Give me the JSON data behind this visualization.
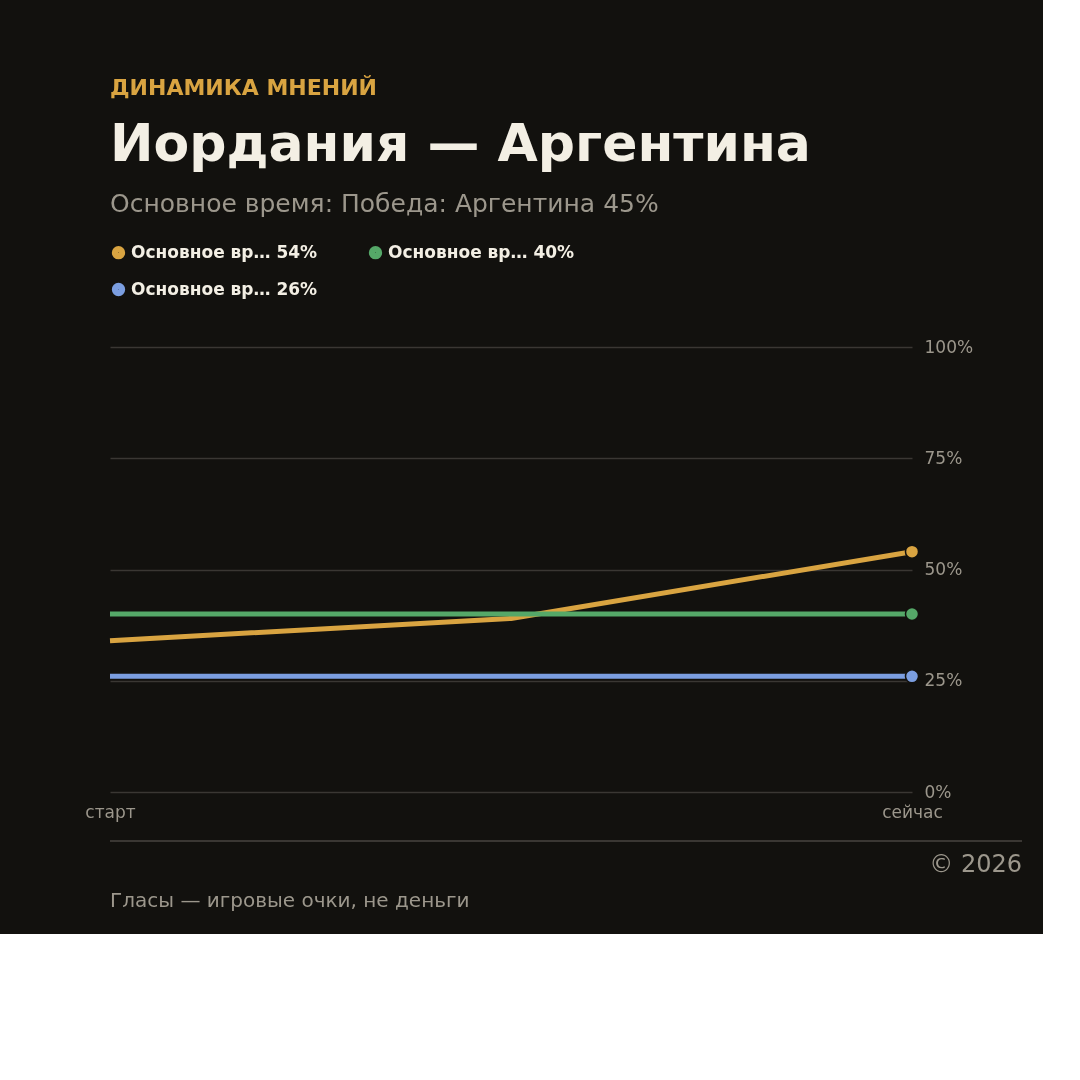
{
  "chart_data": {
    "type": "line",
    "title": "Иордания — Аргентина",
    "subtitle": "Основное время: Победа: Аргентина 45%",
    "annotations": [
      "ДИНАМИКА МНЕНИЙ",
      "© 2026",
      "Гласы — игровые очки, не деньги"
    ],
    "categories": [
      "старт",
      null,
      "сейчас"
    ],
    "ylim": [
      0,
      100
    ],
    "yticks": [
      {
        "value": 0,
        "label": "0%"
      },
      {
        "value": 25,
        "label": "25%"
      },
      {
        "value": 50,
        "label": "50%"
      },
      {
        "value": 75,
        "label": "75%"
      },
      {
        "value": 100,
        "label": "100%"
      }
    ],
    "series": [
      {
        "name": "Основное вр… 54%",
        "color": "#d9a441",
        "values": [
          34,
          39,
          54
        ]
      },
      {
        "name": "Основное вр… 40%",
        "color": "#55a868",
        "values": [
          40,
          40,
          40
        ]
      },
      {
        "name": "Основное вр… 26%",
        "color": "#7b9ee0",
        "values": [
          26,
          26,
          26
        ]
      },
      {
        "type": "scatter",
        "color": "#d9a441",
        "marker": "circle",
        "values": [
          null,
          null,
          54
        ]
      },
      {
        "type": "scatter",
        "color": "#55a868",
        "marker": "circle",
        "values": [
          null,
          null,
          40
        ]
      },
      {
        "type": "scatter",
        "color": "#7b9ee0",
        "marker": "circle",
        "values": [
          null,
          null,
          26
        ]
      }
    ],
    "grid": "y",
    "legend": "top left",
    "line_style": "solid"
  }
}
